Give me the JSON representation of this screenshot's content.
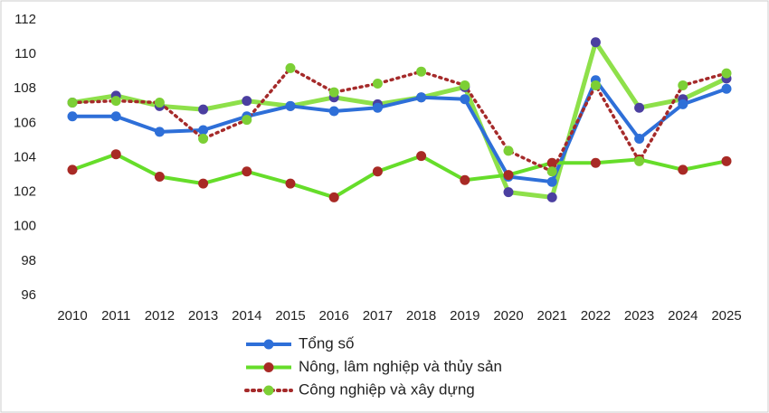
{
  "chart_data": {
    "type": "line",
    "categories": [
      "2010",
      "2011",
      "2012",
      "2013",
      "2014",
      "2015",
      "2016",
      "2017",
      "2018",
      "2019",
      "2020",
      "2021",
      "2022",
      "2023",
      "2024",
      "2025"
    ],
    "series": [
      {
        "color": "#8ee04a",
        "marker_color": "#4b3fa0",
        "values": [
          107.2,
          107.6,
          107.0,
          106.8,
          107.3,
          107.0,
          107.5,
          107.1,
          107.5,
          108.1,
          102.0,
          101.7,
          110.7,
          106.9,
          107.4,
          108.6
        ]
      },
      {
        "name": "Tổng số",
        "color": "#2e6fd8",
        "marker_color": "#2e6fd8",
        "values": [
          106.4,
          106.4,
          105.5,
          105.6,
          106.4,
          107.0,
          106.7,
          106.9,
          107.5,
          107.4,
          102.9,
          102.6,
          108.5,
          105.1,
          107.1,
          108.0
        ]
      },
      {
        "name": "Nông, lâm nghiệp và thủy sản",
        "color": "#66dd2a",
        "marker_color": "#a82a25",
        "values": [
          103.3,
          104.2,
          102.9,
          102.5,
          103.2,
          102.5,
          101.7,
          103.2,
          104.1,
          102.7,
          103.0,
          103.7,
          103.7,
          103.9,
          103.3,
          103.8
        ]
      },
      {
        "name": "Công nghiệp và xây dựng",
        "color": "#a52a2a",
        "marker_color": "#7ccf35",
        "dashed": true,
        "values": [
          107.2,
          107.3,
          107.2,
          105.1,
          106.2,
          109.2,
          107.8,
          108.3,
          109.0,
          108.2,
          104.4,
          103.2,
          108.2,
          103.8,
          108.2,
          108.9
        ]
      }
    ],
    "ylim": [
      96,
      112
    ],
    "yticks": [
      96,
      98,
      100,
      102,
      104,
      106,
      108,
      110,
      112
    ],
    "grid": false
  }
}
